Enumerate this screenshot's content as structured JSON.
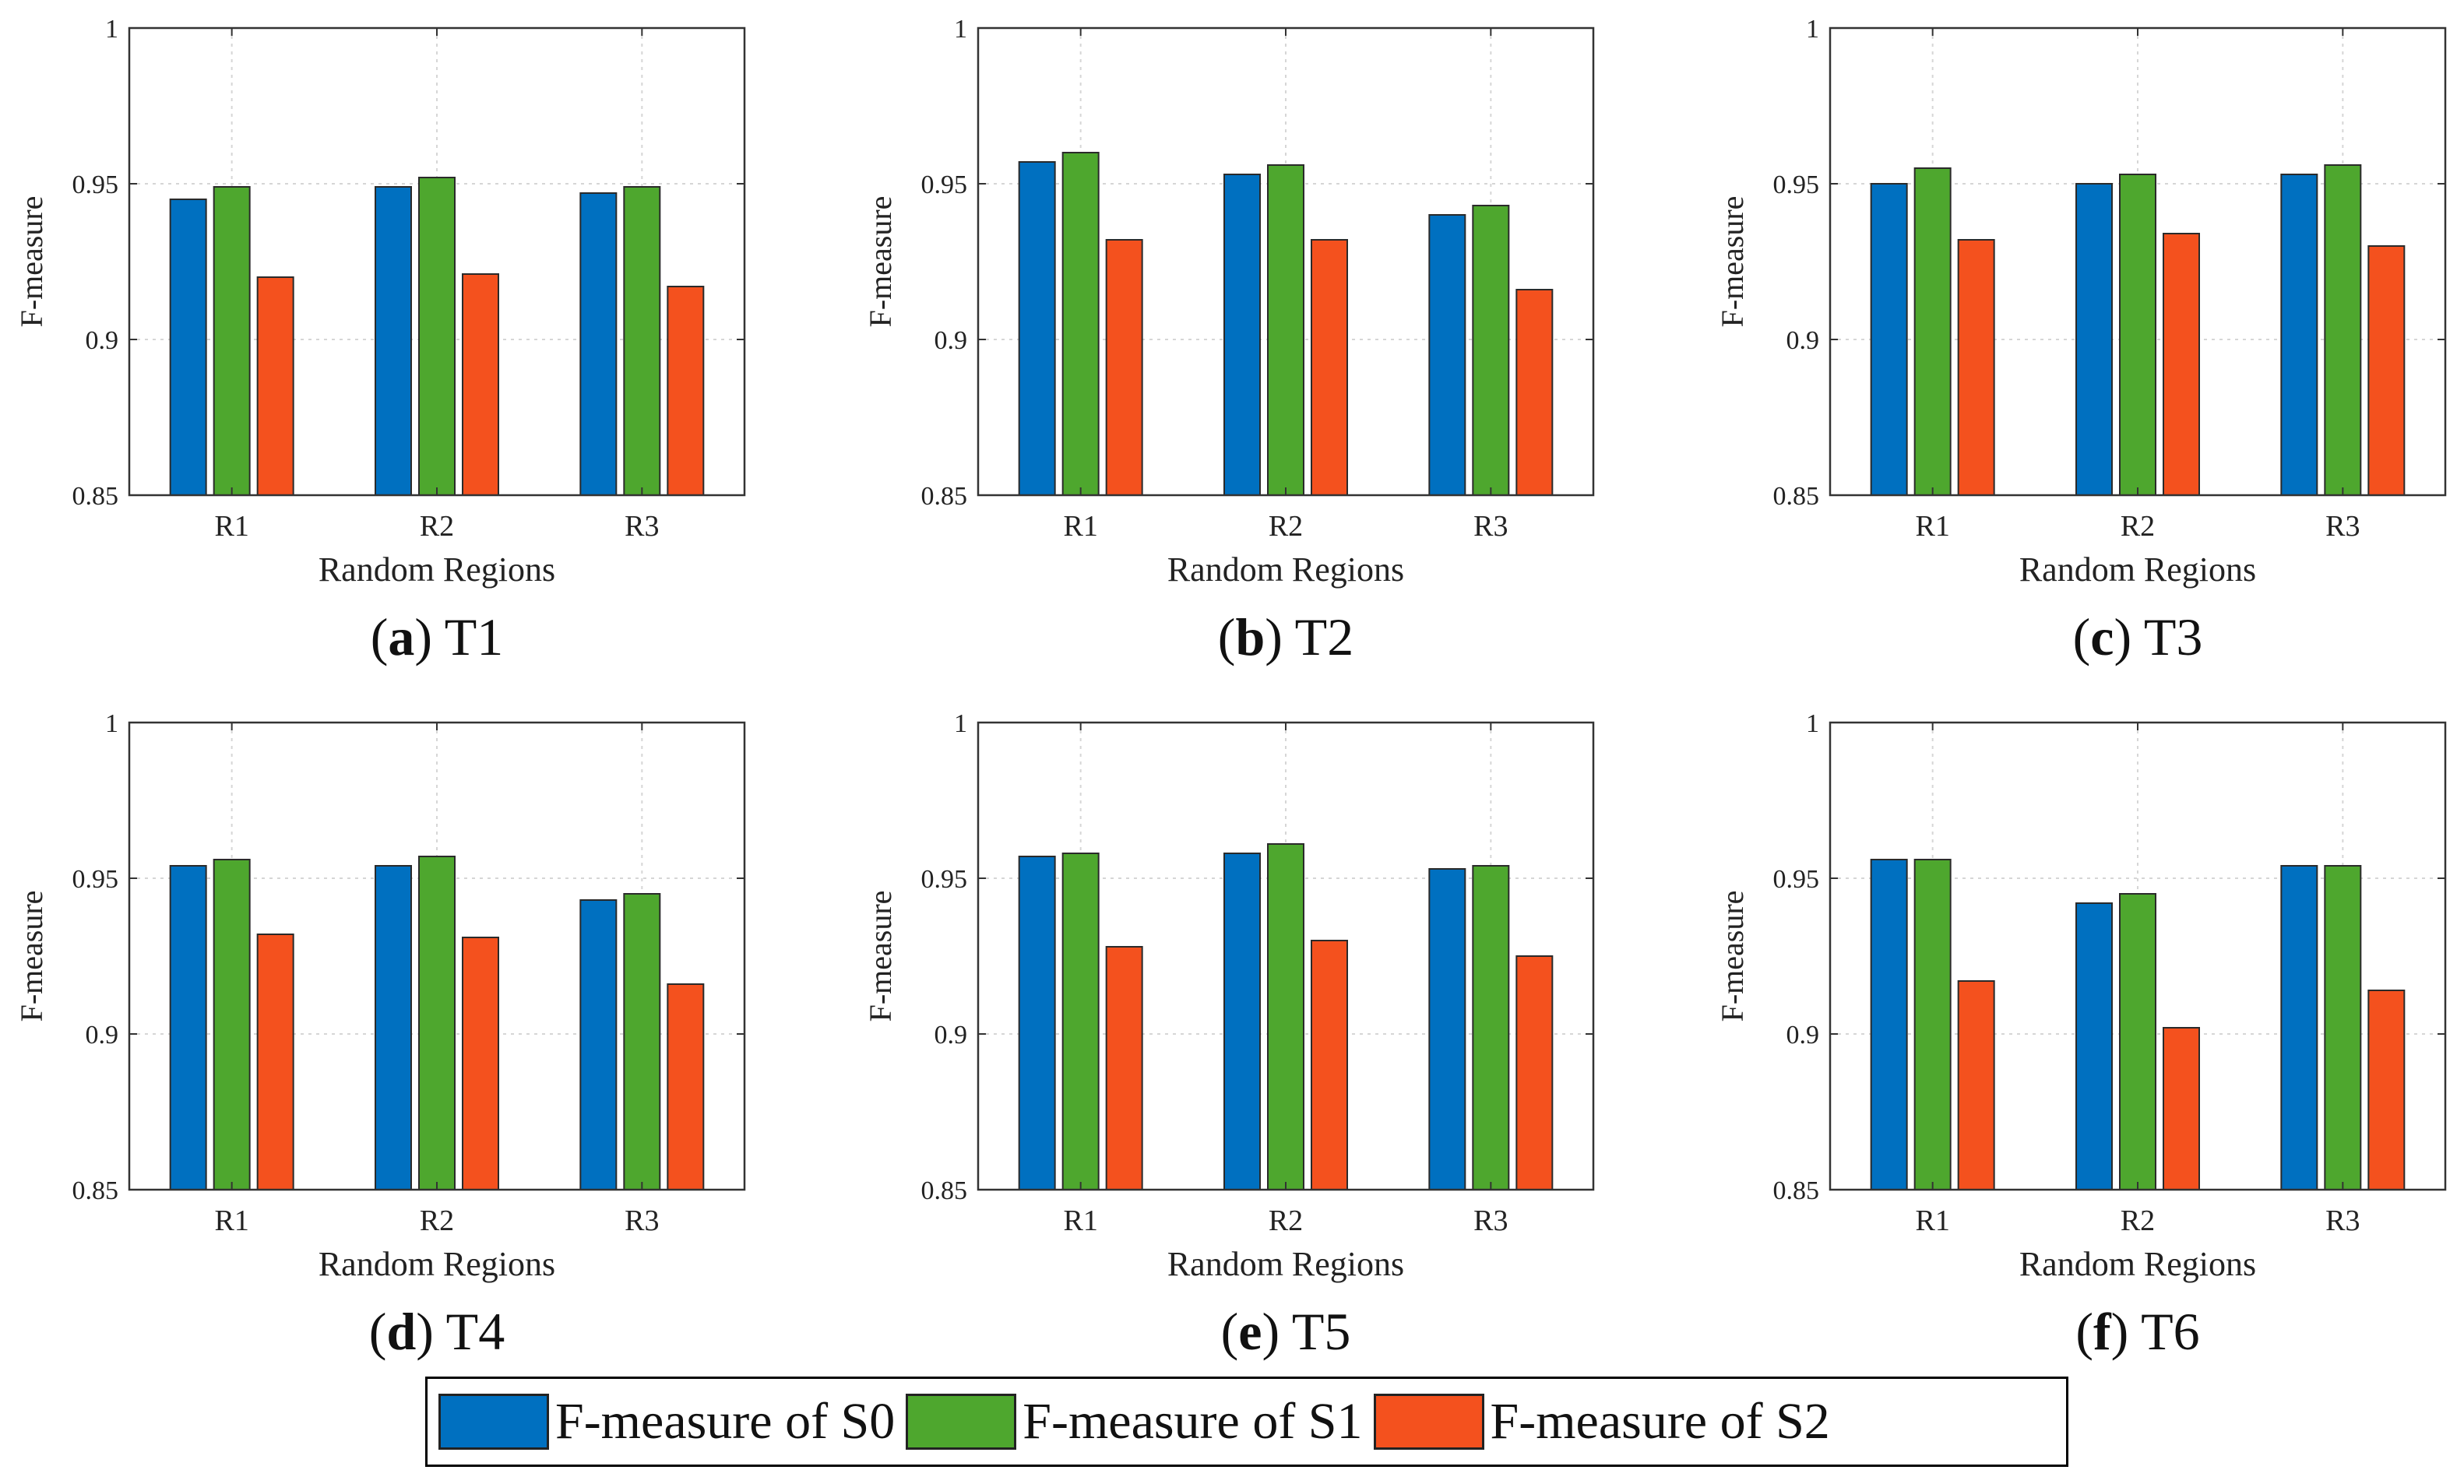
{
  "figure": {
    "legend": [
      {
        "label": "F-measure of S0",
        "color": "#0070C0"
      },
      {
        "label": "F-measure of S1",
        "color": "#4EA72E"
      },
      {
        "label": "F-measure of S2",
        "color": "#F4511E"
      }
    ]
  },
  "chart_data": [
    {
      "type": "bar",
      "panel_letter": "a",
      "panel_name": "T1",
      "xlabel": "Random Regions",
      "ylabel": "F-measure",
      "categories": [
        "R1",
        "R2",
        "R3"
      ],
      "ylim": [
        0.85,
        1
      ],
      "yticks": [
        "0.85",
        "0.9",
        "0.95",
        "1"
      ],
      "grid": true,
      "series": [
        {
          "name": "F-measure of S0",
          "values": [
            0.945,
            0.949,
            0.947
          ]
        },
        {
          "name": "F-measure of S1",
          "values": [
            0.949,
            0.952,
            0.949
          ]
        },
        {
          "name": "F-measure of S2",
          "values": [
            0.92,
            0.921,
            0.917
          ]
        }
      ]
    },
    {
      "type": "bar",
      "panel_letter": "b",
      "panel_name": "T2",
      "xlabel": "Random Regions",
      "ylabel": "F-measure",
      "categories": [
        "R1",
        "R2",
        "R3"
      ],
      "ylim": [
        0.85,
        1
      ],
      "yticks": [
        "0.85",
        "0.9",
        "0.95",
        "1"
      ],
      "grid": true,
      "series": [
        {
          "name": "F-measure of S0",
          "values": [
            0.957,
            0.953,
            0.94
          ]
        },
        {
          "name": "F-measure of S1",
          "values": [
            0.96,
            0.956,
            0.943
          ]
        },
        {
          "name": "F-measure of S2",
          "values": [
            0.932,
            0.932,
            0.916
          ]
        }
      ]
    },
    {
      "type": "bar",
      "panel_letter": "c",
      "panel_name": "T3",
      "xlabel": "Random Regions",
      "ylabel": "F-measure",
      "categories": [
        "R1",
        "R2",
        "R3"
      ],
      "ylim": [
        0.85,
        1
      ],
      "yticks": [
        "0.85",
        "0.9",
        "0.95",
        "1"
      ],
      "grid": true,
      "series": [
        {
          "name": "F-measure of S0",
          "values": [
            0.95,
            0.95,
            0.953
          ]
        },
        {
          "name": "F-measure of S1",
          "values": [
            0.955,
            0.953,
            0.956
          ]
        },
        {
          "name": "F-measure of S2",
          "values": [
            0.932,
            0.934,
            0.93
          ]
        }
      ]
    },
    {
      "type": "bar",
      "panel_letter": "d",
      "panel_name": "T4",
      "xlabel": "Random Regions",
      "ylabel": "F-measure",
      "categories": [
        "R1",
        "R2",
        "R3"
      ],
      "ylim": [
        0.85,
        1
      ],
      "yticks": [
        "0.85",
        "0.9",
        "0.95",
        "1"
      ],
      "grid": true,
      "series": [
        {
          "name": "F-measure of S0",
          "values": [
            0.954,
            0.954,
            0.943
          ]
        },
        {
          "name": "F-measure of S1",
          "values": [
            0.956,
            0.957,
            0.945
          ]
        },
        {
          "name": "F-measure of S2",
          "values": [
            0.932,
            0.931,
            0.916
          ]
        }
      ]
    },
    {
      "type": "bar",
      "panel_letter": "e",
      "panel_name": "T5",
      "xlabel": "Random Regions",
      "ylabel": "F-measure",
      "categories": [
        "R1",
        "R2",
        "R3"
      ],
      "ylim": [
        0.85,
        1
      ],
      "yticks": [
        "0.85",
        "0.9",
        "0.95",
        "1"
      ],
      "grid": true,
      "series": [
        {
          "name": "F-measure of S0",
          "values": [
            0.957,
            0.958,
            0.953
          ]
        },
        {
          "name": "F-measure of S1",
          "values": [
            0.958,
            0.961,
            0.954
          ]
        },
        {
          "name": "F-measure of S2",
          "values": [
            0.928,
            0.93,
            0.925
          ]
        }
      ]
    },
    {
      "type": "bar",
      "panel_letter": "f",
      "panel_name": "T6",
      "xlabel": "Random Regions",
      "ylabel": "F-measure",
      "categories": [
        "R1",
        "R2",
        "R3"
      ],
      "ylim": [
        0.85,
        1
      ],
      "yticks": [
        "0.85",
        "0.9",
        "0.95",
        "1"
      ],
      "grid": true,
      "series": [
        {
          "name": "F-measure of S0",
          "values": [
            0.956,
            0.942,
            0.954
          ]
        },
        {
          "name": "F-measure of S1",
          "values": [
            0.956,
            0.945,
            0.954
          ]
        },
        {
          "name": "F-measure of S2",
          "values": [
            0.917,
            0.902,
            0.914
          ]
        }
      ]
    }
  ]
}
